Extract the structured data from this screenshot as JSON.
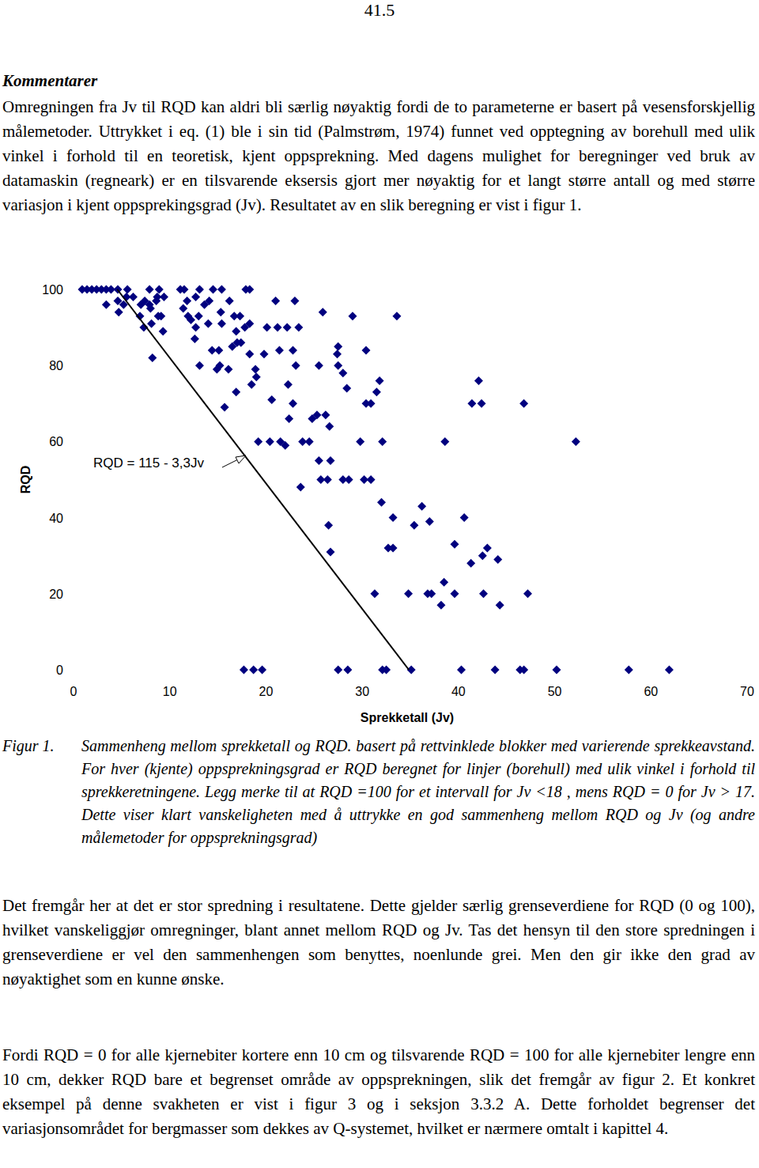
{
  "document": {
    "page_number": "41.5",
    "heading": "Kommentarer",
    "paragraphs": [
      "Omregningen fra Jv til RQD kan aldri bli særlig nøyaktig fordi de to parameterne er basert på vesensforskjellig målemetoder. Uttrykket i eq. (1) ble i sin tid (Palmstrøm, 1974) funnet ved opptegning av borehull med ulik vinkel i forhold til en teoretisk, kjent oppsprekning. Med dagens mulighet for beregninger ved bruk av datamaskin (regneark) er en tilsvarende eksersis gjort mer nøyaktig for et langt større antall og med større variasjon i kjent oppsprekingsgrad (Jv). Resultatet av en slik beregning er vist i figur 1.",
      "Det fremgår her at det er stor spredning i resultatene. Dette gjelder særlig grenseverdiene for RQD (0 og 100), hvilket vanskeliggjør omregninger, blant annet mellom RQD og Jv. Tas det hensyn til den store spredningen i grenseverdiene er vel den sammenhengen som benyttes, noenlunde grei. Men den gir ikke den grad av nøyaktighet som en kunne ønske.",
      "Fordi RQD = 0 for alle kjernebiter kortere enn 10 cm og tilsvarende RQD = 100 for alle kjernebiter lengre enn 10 cm, dekker RQD bare et begrenset område av oppsprekningen, slik det fremgår av figur 2. Et konkret eksempel på denne svakheten er vist i figur 3 og i seksjon 3.3.2 A. Dette forholdet begrenser det variasjonsområdet for bergmasser som dekkes av Q-systemet, hvilket er nærmere omtalt i kapittel 4."
    ],
    "figure_label": "Figur 1.",
    "figure_caption": "Sammenheng mellom sprekketall og RQD. basert på rettvinklede blokker med varierende sprekkeavstand. For hver (kjente) oppsprekningsgrad er RQD beregnet for linjer (borehull) med ulik vinkel i forhold til sprekkeretningene. Legg merke til at RQD =100 for et intervall for Jv <18 , mens RQD = 0 for Jv > 17. Dette viser klart vanskeligheten med å uttrykke en god sammenheng mellom RQD og Jv (og andre målemetoder for oppsprekningsgrad)"
  },
  "chart_data": {
    "type": "scatter",
    "x_label": "Sprekketall (Jv)",
    "y_label": "RQD",
    "xlim": [
      0,
      70
    ],
    "ylim": [
      0,
      100
    ],
    "xticks": [
      0,
      10,
      20,
      30,
      40,
      50,
      60,
      70
    ],
    "yticks": [
      0,
      20,
      40,
      60,
      80,
      100
    ],
    "grid": false,
    "annotations": [
      {
        "text": "RQD = 115 - 3,3Jv"
      }
    ],
    "series": [
      {
        "type": "scatter",
        "marker": "diamond",
        "color": "#00007f",
        "x": [
          0.9,
          1.4,
          1.9,
          2.4,
          2.9,
          3.4,
          3.9,
          4.6,
          5.6,
          7.9,
          8.9,
          11.1,
          11.5,
          13.1,
          14.5,
          15.4,
          17.9,
          18.3,
          4.6,
          5.2,
          6.2,
          7.0,
          3.4,
          4.7,
          5.5,
          6.9,
          7.4,
          8.0,
          8.6,
          8.1,
          8.8,
          9.1,
          7.9,
          7.3,
          9.3,
          8.2,
          8.7,
          9.4,
          11.4,
          11.9,
          12.2,
          12.7,
          13.6,
          14.1,
          11.8,
          12.7,
          15.3,
          16.2,
          16.7,
          15.4,
          16.9,
          12.6,
          13.0,
          14.0,
          14.4,
          15.1,
          15.2,
          16.5,
          17.0,
          17.4,
          17.8,
          18.3,
          17.3,
          16.1,
          13.1,
          14.9,
          16.9,
          15.7,
          18.5,
          18.9,
          19.0,
          18.3,
          19.8,
          20.1,
          21.0,
          21.2,
          22.2,
          23.0,
          23.4,
          21.4,
          22.8,
          22.3,
          22.8,
          23.1,
          20.6,
          24.8,
          25.5,
          26.2,
          25.9,
          29.0,
          30.9,
          30.4,
          27.5,
          27.5,
          28.0,
          28.4,
          27.4,
          31.8,
          31.5,
          30.4,
          22.4,
          25.3,
          26.6,
          23.8,
          20.4,
          24.5,
          25.5,
          26.7,
          25.7,
          26.4,
          28.0,
          28.6,
          30.2,
          30.9,
          23.6,
          19.2,
          21.5,
          22.0,
          29.8,
          32.1,
          38.6,
          52.2,
          41.4,
          42.1,
          42.4,
          46.8,
          26.5,
          26.7,
          32.0,
          33.2,
          35.4,
          36.2,
          37.0,
          40.6,
          33.2,
          32.7,
          39.6,
          42.5,
          41.3,
          43.0,
          44.1,
          31.3,
          34.8,
          37.2,
          36.8,
          38.5,
          39.6,
          38.2,
          42.6,
          44.3,
          47.2,
          33.6,
          17.7,
          18.7,
          19.6,
          27.5,
          28.5,
          32.1,
          32.5,
          35.1,
          40.3,
          43.8,
          46.4,
          46.8,
          50.2,
          57.7,
          61.9
        ],
        "values": [
          100,
          100,
          100,
          100,
          100,
          100,
          100,
          100,
          100,
          100,
          100,
          100,
          100,
          100,
          100,
          100,
          100,
          100,
          97,
          96,
          98,
          96,
          96,
          94,
          98,
          93,
          97,
          95,
          97,
          91,
          93,
          93,
          96,
          90,
          89,
          82,
          98,
          98,
          95,
          93,
          92,
          90,
          96,
          97,
          97,
          98,
          94,
          97,
          93,
          91,
          89,
          87,
          93,
          91,
          84,
          84,
          80,
          85,
          86,
          86,
          90,
          91,
          93,
          79,
          80,
          79,
          73,
          69,
          75,
          79,
          77,
          83,
          83,
          90,
          97,
          90,
          90,
          97,
          90,
          84,
          84,
          75,
          70,
          80,
          71,
          66,
          80,
          67,
          94,
          93,
          70,
          70,
          85,
          80,
          78,
          74,
          83,
          76,
          73,
          84,
          66,
          67,
          64,
          60,
          60,
          60,
          55,
          55,
          50,
          50,
          50,
          50,
          50,
          50,
          48,
          60,
          60,
          59,
          60,
          60,
          60,
          60,
          70,
          76,
          70,
          70,
          38,
          31,
          44,
          40,
          38,
          43,
          39,
          40,
          32,
          32,
          33,
          30,
          28,
          32,
          29,
          20,
          20,
          20,
          20,
          23,
          20,
          17,
          20,
          17,
          20,
          93,
          0,
          0,
          0,
          0,
          0,
          0,
          0,
          0,
          0,
          0,
          0,
          0,
          0,
          0,
          0
        ]
      },
      {
        "type": "line",
        "line_style": "solid",
        "color": "#000000",
        "x": [
          4.55,
          34.85
        ],
        "values": [
          100,
          0
        ]
      }
    ]
  }
}
